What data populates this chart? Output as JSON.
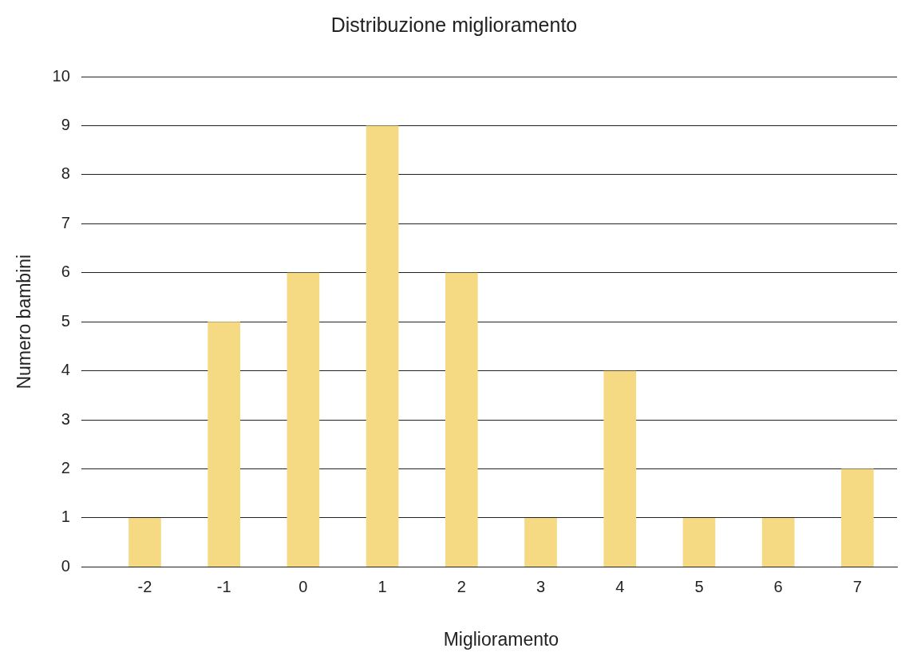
{
  "chart_data": {
    "type": "bar",
    "title": "Distribuzione miglioramento",
    "xlabel": "Miglioramento",
    "ylabel": "Numero bambini",
    "categories": [
      "-2",
      "-1",
      "0",
      "1",
      "2",
      "3",
      "4",
      "5",
      "6",
      "7"
    ],
    "values": [
      1,
      5,
      6,
      9,
      6,
      1,
      4,
      1,
      1,
      2
    ],
    "color": "#f5d983",
    "ylim": [
      0,
      10
    ],
    "yticks": [
      0,
      1,
      2,
      3,
      4,
      5,
      6,
      7,
      8,
      9,
      10
    ],
    "grid": "y",
    "legend": false
  }
}
